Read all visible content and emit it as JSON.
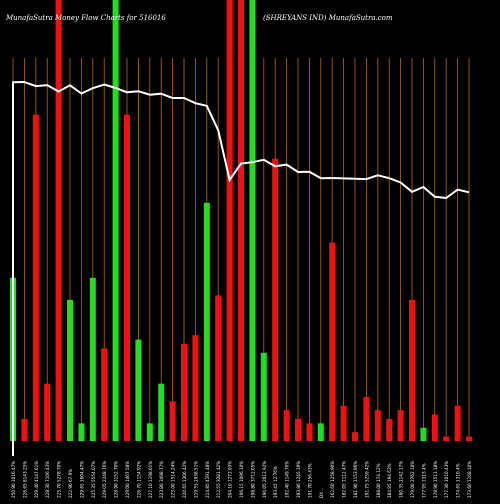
{
  "page": {
    "title_left": "MunafaSutra  Money Flow  Charts for 516016",
    "title_right": "(SHREYANS IND) MunafaSutra.com"
  },
  "colors": {
    "background": "#000000",
    "up": "#22dd22",
    "down": "#ee1111",
    "grid": "#b26a1a",
    "line": "#ffffff",
    "text": "#ffffff"
  },
  "chart_data": {
    "type": "bar",
    "title": "MunafaSutra  Money Flow  Charts for 516016",
    "subtitle": "(SHREYANS IND) MunafaSutra.com",
    "grid": true,
    "categories": [
      "250.90 1016.47%",
      "226.65 8143.25%",
      "229.40 4147.61%",
      "228.30 7106.43%",
      "225.70 5278.70%",
      "222.90 67.9%",
      "229.65 1604.47%",
      "225.35 5554.07%",
      "229.05 2248.76%",
      "228.90 3152.70%",
      "229.00 1467.58%",
      "226.70 1154.92%",
      "227.10 1198.01%",
      "223.80 3498.77%",
      "223.00 1514.24%",
      "220.65 1306.42%",
      "219.55 1938.51%",
      "214.85 4191.48%",
      "212.55 3281.42%",
      "204.10 1272.93%",
      "196.15 1096.10%",
      "198.80 3712.05%",
      "190.05 2012.92%",
      "193.45 12.76%",
      "192.40 1149.76%",
      "193.86 1245.19%",
      "191.70 256.43%",
      "DX ..",
      "162.60 1258.90%",
      "182.05 1112.47%",
      "181.90 1153.96%",
      "191.75 5259.42%",
      "188.00 174.12%",
      "184.95 194.63%",
      "180.35 1142.17%",
      "179.00 2762.18%",
      "177.95 1313.4%",
      "178.90 1511.18%",
      "177.30 1010.43%",
      "174.65 1310.4%",
      "173.60 1168.10%"
    ],
    "series": [
      {
        "values": [
          0.37,
          0.05,
          0.74,
          0.13,
          1.0,
          0.32,
          0.04,
          0.37,
          0.21,
          1.0,
          0.74,
          0.23,
          0.04,
          0.13,
          0.09,
          0.22,
          0.24,
          0.54,
          0.33,
          1.0,
          1.0,
          1.0,
          0.2,
          0.64,
          0.07,
          0.05,
          0.04,
          0.04,
          0.45,
          0.08,
          0.02,
          0.1,
          0.07,
          0.05,
          0.07,
          0.32,
          0.03,
          0.06,
          0.01,
          0.08,
          0.01
        ],
        "colors": [
          "up",
          "down",
          "down",
          "down",
          "down",
          "up",
          "up",
          "up",
          "down",
          "up",
          "down",
          "up",
          "up",
          "up",
          "down",
          "down",
          "down",
          "up",
          "down",
          "down",
          "down",
          "up",
          "up",
          "down",
          "down",
          "down",
          "down",
          "up",
          "down",
          "down",
          "down",
          "down",
          "down",
          "down",
          "down",
          "down",
          "up",
          "down",
          "down",
          "down",
          "down"
        ]
      },
      {
        "values": [
          230.8,
          230.9,
          229.2,
          229.6,
          226.9,
          229.5,
          226.1,
          228.3,
          229.8,
          228.4,
          226.6,
          227.0,
          225.6,
          226.0,
          224.2,
          224.2,
          222.0,
          220.9,
          210.7,
          189.9,
          196.7,
          197.3,
          198.3,
          195.6,
          196.3,
          193.2,
          193.3,
          190.6,
          190.7,
          190.5,
          190.4,
          190.2,
          191.8,
          190.6,
          188.8,
          184.9,
          186.9,
          182.8,
          182.3,
          185.8,
          184.7
        ]
      }
    ]
  }
}
